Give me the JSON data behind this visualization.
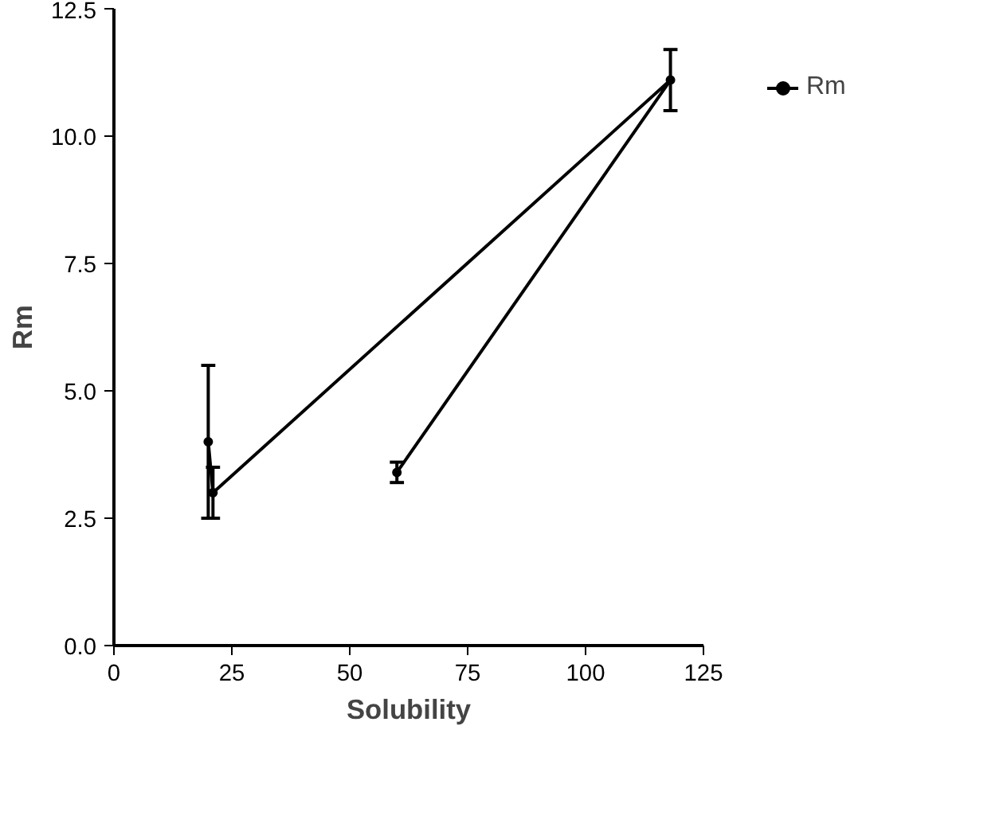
{
  "chart_data": {
    "type": "line",
    "xlabel": "Solubility",
    "ylabel": "Rm",
    "x": [
      20,
      21,
      118,
      60
    ],
    "series": [
      {
        "name": "Rm",
        "color": "#000000",
        "values": [
          4.0,
          3.0,
          11.1,
          3.4
        ],
        "errors": [
          1.5,
          0.5,
          0.6,
          0.2
        ]
      }
    ],
    "xlim": [
      0,
      125
    ],
    "xticks": [
      0,
      25,
      50,
      75,
      100,
      125
    ],
    "ylim": [
      0,
      12.5
    ],
    "yticks": [
      {
        "value": 0,
        "label": "0.0"
      },
      {
        "value": 2.5,
        "label": "2.5"
      },
      {
        "value": 5,
        "label": "5.0"
      },
      {
        "value": 7.5,
        "label": "7.5"
      },
      {
        "value": 10,
        "label": "10.0"
      },
      {
        "value": 12.5,
        "label": "12.5"
      }
    ],
    "grid": false,
    "legend": "top right",
    "marker": "circle",
    "line_style": "solid"
  }
}
